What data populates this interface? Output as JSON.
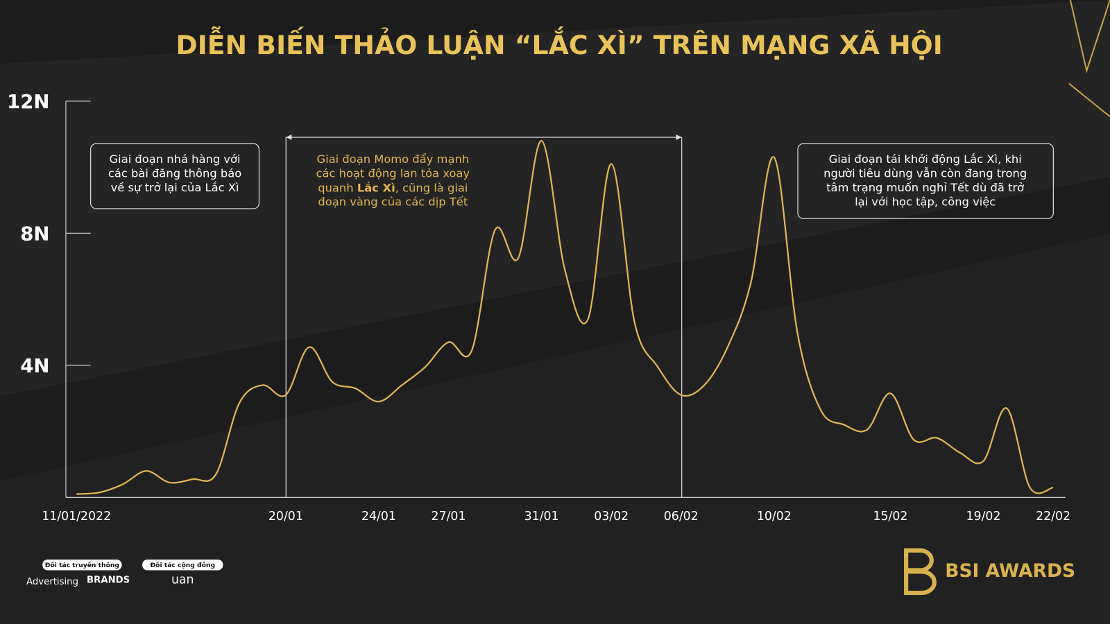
{
  "chart_data": {
    "type": "line",
    "title": "DIỄN BIẾN THẢO LUẬN “LẮC XÌ” TRÊN MẠNG XÃ HỘI",
    "categories": [
      "11/01/2022",
      null,
      null,
      null,
      null,
      null,
      null,
      null,
      null,
      "20/01",
      null,
      null,
      null,
      "24/01",
      null,
      null,
      "27/01",
      null,
      null,
      null,
      "31/01",
      null,
      null,
      "03/02",
      null,
      null,
      "06/02",
      null,
      null,
      null,
      "10/02",
      null,
      null,
      null,
      null,
      "15/02",
      null,
      null,
      null,
      "19/02",
      null,
      null,
      "22/02"
    ],
    "series": [
      {
        "color": "#e3b550",
        "values": [
          0.1,
          0.15,
          0.4,
          0.8,
          0.45,
          0.55,
          0.7,
          2.85,
          3.4,
          3.1,
          4.55,
          3.5,
          3.3,
          2.9,
          3.4,
          3.95,
          4.7,
          4.45,
          8.1,
          7.25,
          10.8,
          6.9,
          5.4,
          10.1,
          5.3,
          3.95,
          3.1,
          3.4,
          4.55,
          6.5,
          10.3,
          5.0,
          2.65,
          2.2,
          2.05,
          3.15,
          1.75,
          1.8,
          1.35,
          1.1,
          2.7,
          0.3,
          0.3
        ]
      }
    ],
    "ylim": [
      0,
      12
    ],
    "yticks": [
      {
        "value": 4,
        "label": "4N"
      },
      {
        "value": 8,
        "label": "8N"
      },
      {
        "value": 12,
        "label": "12N"
      }
    ],
    "annotations": [
      {
        "lines": [
          "Giai đoạn nhá hàng với",
          "các bài đăng thông báo",
          "về sự trở lại của Lắc Xì"
        ]
      },
      {
        "lines": [
          "Giai đoạn Momo đẩy mạnh",
          "các hoạt động lan tỏa xoay",
          [
            "quanh ",
            "Lắc Xì",
            ", cũng là giai"
          ],
          "đoạn vàng của các dịp Tết"
        ]
      },
      {
        "lines": [
          "Giai đoạn tái khởi động Lắc Xì, khi",
          "người tiêu dùng vẫn còn đang trong",
          "tâm trạng muốn nghỉ Tết dù đã trở",
          "lại với học tập, công việc"
        ]
      }
    ]
  },
  "footer": {
    "media_partner": "Đối tác truyền thông",
    "community_partner": "Đối tác cộng đồng",
    "logos": [
      "Advertising",
      "BRANDS",
      "uan"
    ],
    "brand": "BSI AWARDS"
  }
}
